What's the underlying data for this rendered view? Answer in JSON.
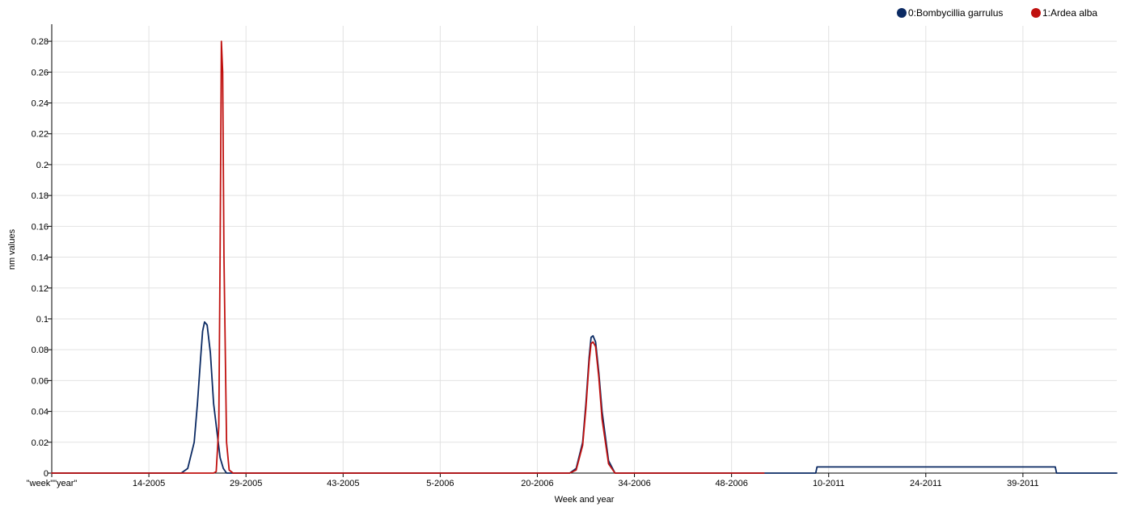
{
  "chart_data": {
    "type": "line",
    "title": "",
    "xlabel": "Week and year",
    "ylabel": "nm values",
    "ylim": [
      0,
      0.29
    ],
    "grid": true,
    "legend_position": "top-right",
    "x_tick_labels": [
      "\"week\"\"year\"",
      "14-2005",
      "29-2005",
      "43-2005",
      "5-2006",
      "20-2006",
      "34-2006",
      "48-2006",
      "10-2011",
      "24-2011",
      "39-2011"
    ],
    "x_tick_positions": [
      0,
      15,
      30,
      45,
      60,
      75,
      90,
      105,
      120,
      135,
      150
    ],
    "y_ticks": [
      0,
      0.02,
      0.04,
      0.06,
      0.08,
      0.1,
      0.12,
      0.14,
      0.16,
      0.18,
      0.2,
      0.22,
      0.24,
      0.26,
      0.28
    ],
    "series": [
      {
        "name": "0:Bombycillia garrulus",
        "color": "#0b2a63",
        "x": [
          0,
          20,
          21,
          22,
          22.5,
          23,
          23.3,
          23.6,
          24,
          24.5,
          25,
          26,
          26.5,
          27,
          28,
          40,
          70,
          80,
          81,
          82,
          82.5,
          83,
          83.3,
          83.6,
          84,
          84.5,
          85,
          86,
          87,
          100,
          118,
          118.2,
          150,
          155,
          155.2,
          164.5
        ],
        "y": [
          0,
          0,
          0.003,
          0.02,
          0.045,
          0.075,
          0.092,
          0.098,
          0.096,
          0.078,
          0.045,
          0.01,
          0.003,
          0,
          0,
          0,
          0,
          0,
          0.003,
          0.02,
          0.045,
          0.075,
          0.088,
          0.089,
          0.085,
          0.065,
          0.04,
          0.008,
          0,
          0,
          0,
          0.004,
          0.004,
          0.004,
          0,
          0
        ]
      },
      {
        "name": "1:Ardea alba",
        "color": "#c0110f",
        "x": [
          0,
          25,
          25.4,
          25.8,
          26,
          26.2,
          26.4,
          26.6,
          27,
          27.4,
          28,
          40,
          70,
          80,
          81,
          82,
          82.5,
          83,
          83.3,
          83.6,
          84,
          84.5,
          85,
          86,
          87,
          100,
          110
        ],
        "y": [
          0,
          0,
          0.001,
          0.03,
          0.14,
          0.28,
          0.26,
          0.14,
          0.02,
          0.002,
          0,
          0,
          0,
          0,
          0.002,
          0.018,
          0.042,
          0.072,
          0.084,
          0.085,
          0.082,
          0.062,
          0.035,
          0.006,
          0,
          0,
          0
        ]
      }
    ]
  }
}
